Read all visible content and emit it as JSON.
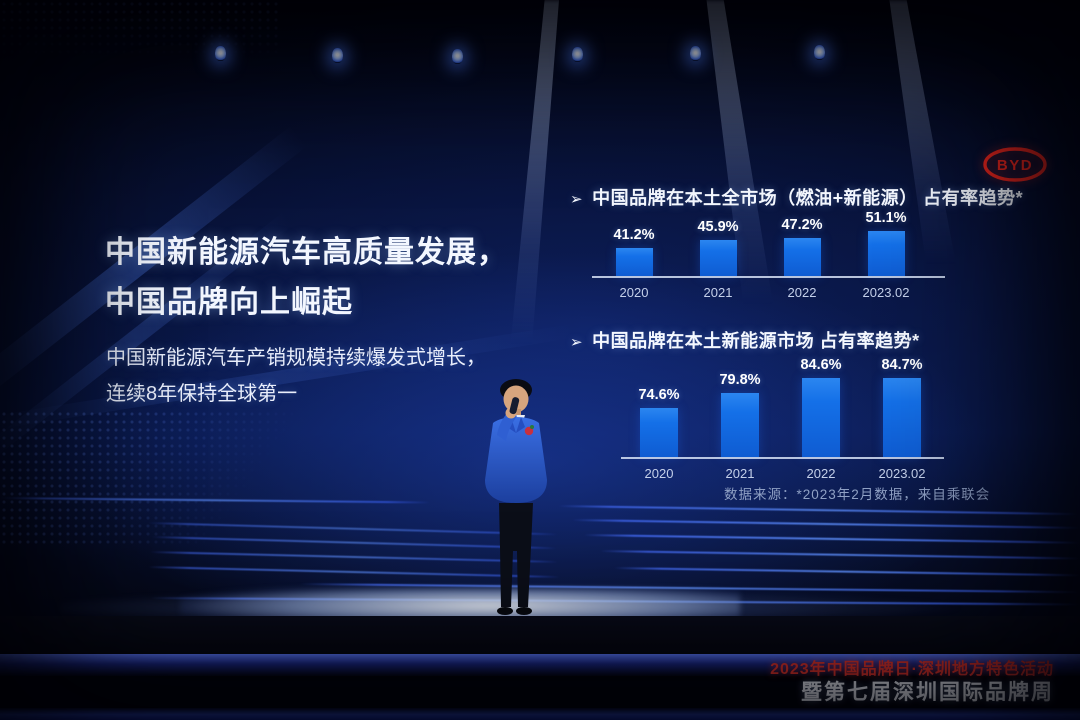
{
  "logo": {
    "brand": "BYD"
  },
  "headline": {
    "line1": "中国新能源汽车高质量发展，",
    "line2": "中国品牌向上崛起"
  },
  "subheadline": {
    "line1": "中国新能源汽车产销规模持续爆发式增长，",
    "line2": "连续8年保持全球第一"
  },
  "source_note": "数据来源：*2023年2月数据，来自乘联会",
  "footer": {
    "line1": "2023年中国品牌日·深圳地方特色活动",
    "line2": "暨第七届深圳国际品牌周"
  },
  "colors": {
    "bar_blue": "#1470e8",
    "accent_red": "#e5342b",
    "text_white": "#ffffff",
    "source_gray": "#8fa0c4"
  },
  "chart_data": [
    {
      "type": "bar",
      "bullet": "➢",
      "title": "中国品牌在本土全市场（燃油+新能源） 占有率趋势*",
      "categories": [
        "2020",
        "2021",
        "2022",
        "2023.02"
      ],
      "values": [
        41.2,
        45.9,
        47.2,
        51.1
      ],
      "unit": "%",
      "ylim": [
        0,
        60
      ],
      "grid": false,
      "legend": "none",
      "render": {
        "c0": 42,
        "spacing": 84,
        "barw": 37,
        "hmin": 28,
        "hmax": 45
      }
    },
    {
      "type": "bar",
      "bullet": "➢",
      "title": "中国品牌在本土新能源市场 占有率趋势*",
      "categories": [
        "2020",
        "2021",
        "2022",
        "2023.02"
      ],
      "values": [
        74.6,
        79.8,
        84.6,
        84.7
      ],
      "unit": "%",
      "ylim": [
        0,
        100
      ],
      "grid": false,
      "legend": "none",
      "render": {
        "c0": 38,
        "spacing": 81,
        "barw": 38,
        "hmin": 49,
        "hmax": 79
      }
    }
  ]
}
